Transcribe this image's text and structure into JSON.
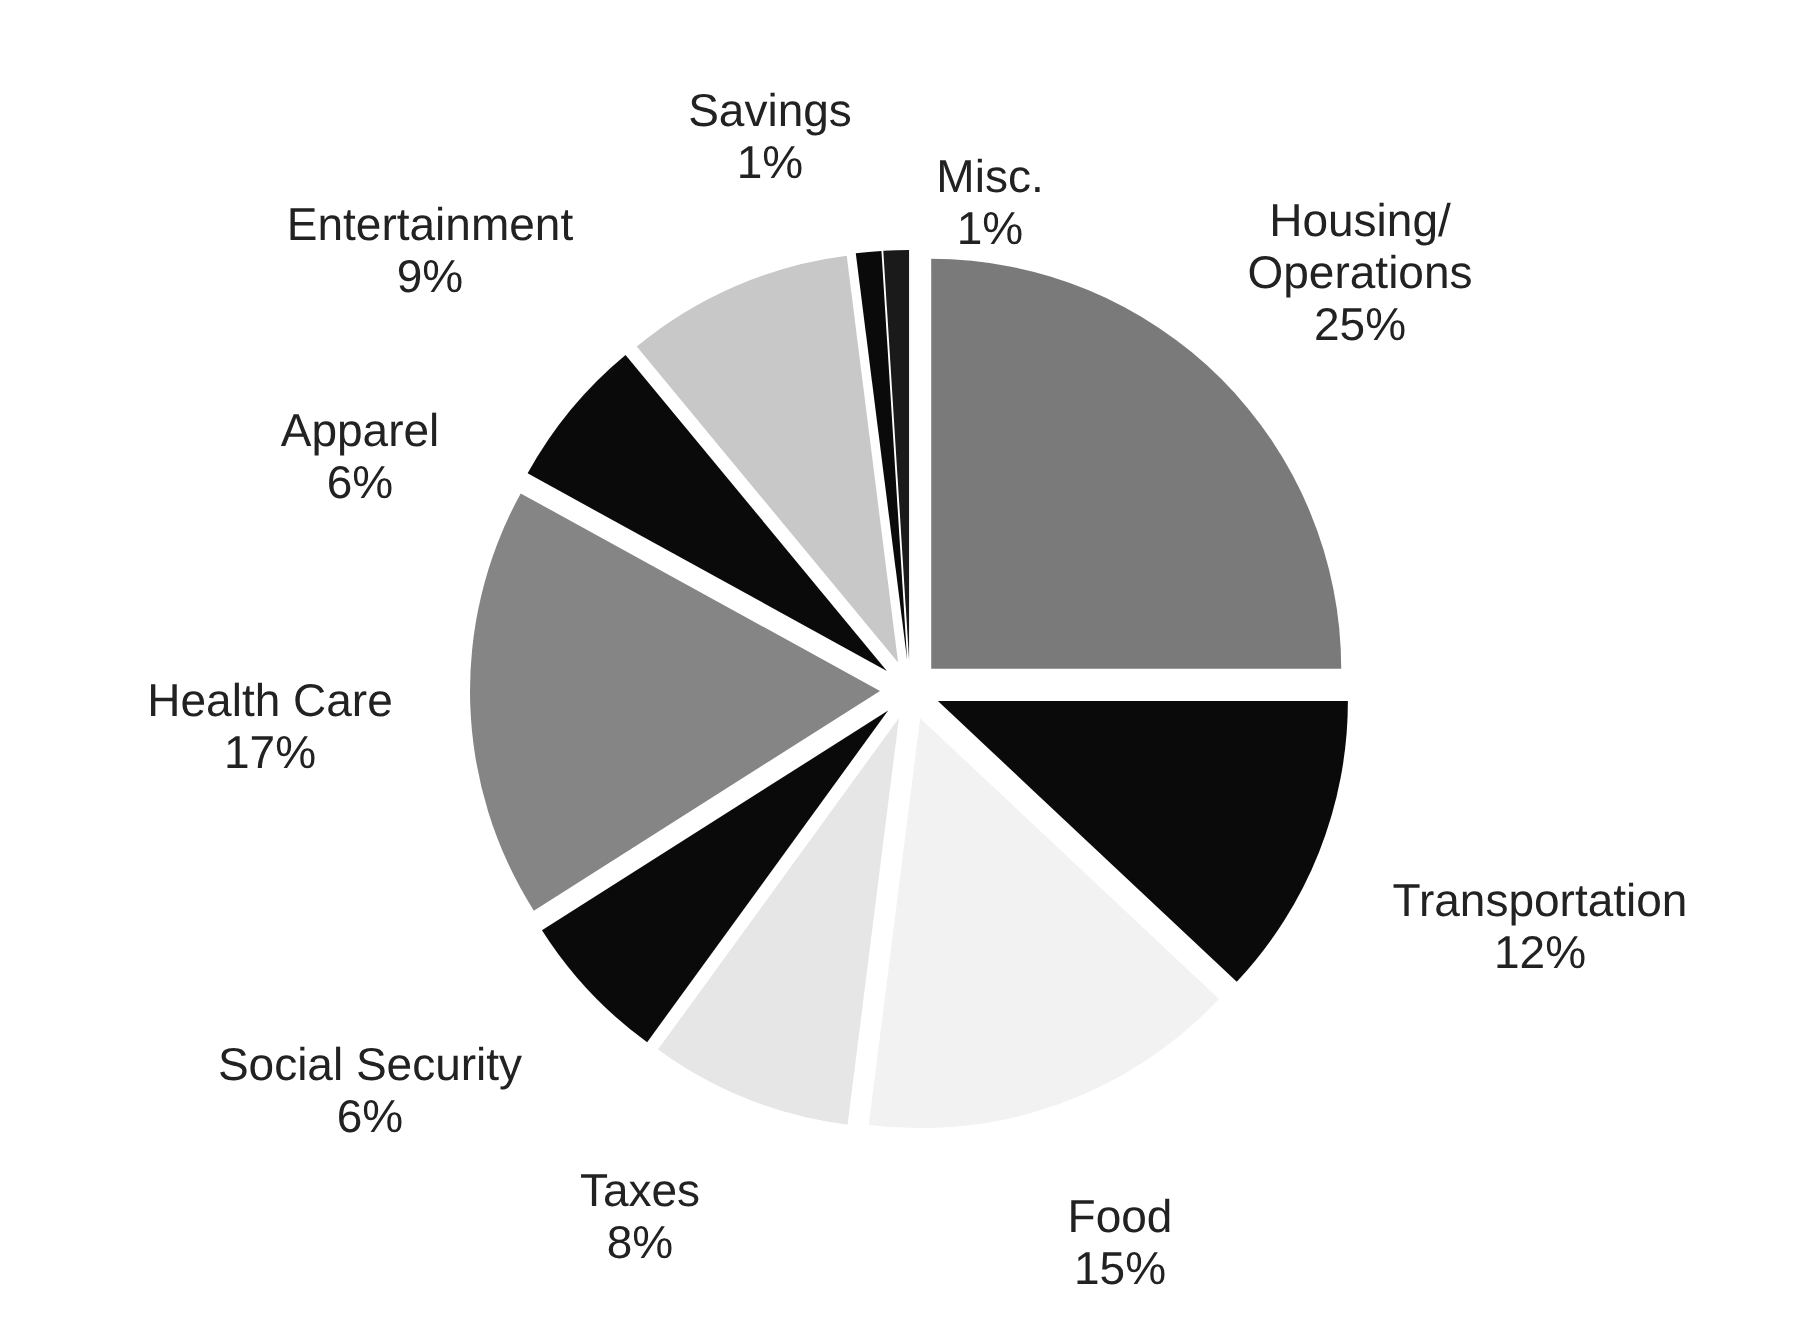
{
  "chart_data": {
    "type": "pie",
    "categories": [
      "Housing/Operations",
      "Transportation",
      "Food",
      "Taxes",
      "Social Security",
      "Health Care",
      "Apparel",
      "Entertainment",
      "Savings",
      "Misc."
    ],
    "values": [
      25,
      12,
      15,
      8,
      6,
      17,
      6,
      9,
      1,
      1
    ],
    "value_labels": [
      "25%",
      "12%",
      "15%",
      "8%",
      "6%",
      "17%",
      "6%",
      "9%",
      "1%",
      "1%"
    ],
    "colors": [
      "#7a7a7a",
      "#0a0a0a",
      "#f2f2f2",
      "#e6e6e6",
      "#0a0a0a",
      "#858585",
      "#0a0a0a",
      "#c8c8c8",
      "#0a0a0a",
      "#1a1a1a"
    ]
  }
}
